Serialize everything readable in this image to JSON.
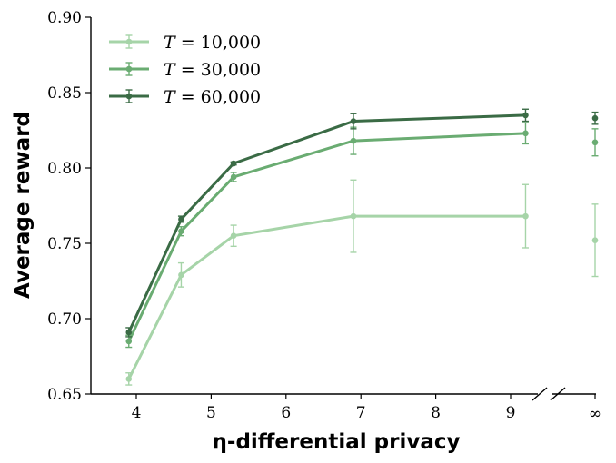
{
  "chart_data": {
    "type": "line",
    "xlabel": "η-differential privacy",
    "ylabel": "Average reward",
    "x": [
      3.9,
      4.6,
      5.3,
      6.9,
      9.2
    ],
    "x_inf_label": "∞",
    "x_ticks": [
      "4",
      "5",
      "6",
      "7",
      "8",
      "9"
    ],
    "xlim": [
      3.4,
      10.1
    ],
    "ylim": [
      0.65,
      0.9
    ],
    "y_ticks": [
      "0.65",
      "0.70",
      "0.75",
      "0.80",
      "0.85",
      "0.90"
    ],
    "legend_position": "top-left",
    "grid": false,
    "series": [
      {
        "name": "T = 10,000",
        "name_var": "T",
        "name_val": "= 10,000",
        "color": "#a6d4a8",
        "values": [
          0.66,
          0.729,
          0.755,
          0.768,
          0.768
        ],
        "errors": [
          0.004,
          0.008,
          0.007,
          0.024,
          0.021
        ],
        "inf_value": 0.752,
        "inf_error": 0.024
      },
      {
        "name": "T = 30,000",
        "name_var": "T",
        "name_val": "= 30,000",
        "color": "#6aac72",
        "values": [
          0.685,
          0.758,
          0.794,
          0.818,
          0.823
        ],
        "errors": [
          0.004,
          0.003,
          0.003,
          0.009,
          0.007
        ],
        "inf_value": 0.817,
        "inf_error": 0.009
      },
      {
        "name": "T = 60,000",
        "name_var": "T",
        "name_val": "= 60,000",
        "color": "#3a6b45",
        "values": [
          0.691,
          0.766,
          0.803,
          0.831,
          0.835
        ],
        "errors": [
          0.003,
          0.002,
          0.001,
          0.005,
          0.004
        ],
        "inf_value": 0.833,
        "inf_error": 0.004
      }
    ]
  }
}
